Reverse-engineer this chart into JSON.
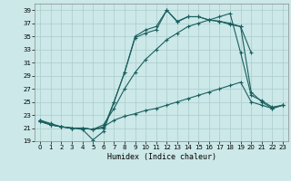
{
  "xlabel": "Humidex (Indice chaleur)",
  "bg_color": "#cce8e8",
  "grid_color": "#aacccc",
  "line_color": "#1a5f5f",
  "xlim": [
    -0.5,
    23.5
  ],
  "ylim": [
    19,
    40
  ],
  "yticks": [
    19,
    21,
    23,
    25,
    27,
    29,
    31,
    33,
    35,
    37,
    39
  ],
  "xticks": [
    0,
    1,
    2,
    3,
    4,
    5,
    6,
    7,
    8,
    9,
    10,
    11,
    12,
    13,
    14,
    15,
    16,
    17,
    18,
    19,
    20,
    21,
    22,
    23
  ],
  "series": [
    {
      "x": [
        0,
        1,
        2,
        3,
        4,
        5,
        6,
        7,
        8,
        9,
        10,
        11,
        12,
        13,
        14,
        15,
        16,
        17,
        18,
        19,
        20
      ],
      "y": [
        22.2,
        21.7,
        21.2,
        21.0,
        21.0,
        20.8,
        21.0,
        25.0,
        29.5,
        34.8,
        35.5,
        36.0,
        39.0,
        37.2,
        38.0,
        38.0,
        37.5,
        37.3,
        36.8,
        36.5,
        32.5
      ]
    },
    {
      "x": [
        0,
        1,
        2,
        3,
        4,
        5,
        6,
        7,
        8,
        9,
        10,
        11,
        12,
        13,
        14,
        15,
        16,
        17,
        18,
        19,
        20,
        21,
        22,
        23
      ],
      "y": [
        22.2,
        21.5,
        21.2,
        21.0,
        20.8,
        19.2,
        20.5,
        25.0,
        29.5,
        35.0,
        36.0,
        36.5,
        39.0,
        37.3,
        38.0,
        38.0,
        37.5,
        37.3,
        37.0,
        36.5,
        26.5,
        25.0,
        24.0,
        24.5
      ]
    },
    {
      "x": [
        0,
        1,
        2,
        3,
        4,
        5,
        6,
        7,
        8,
        9,
        10,
        11,
        12,
        13,
        14,
        15,
        16,
        17,
        18,
        19,
        20,
        21,
        22,
        23
      ],
      "y": [
        22.0,
        21.5,
        21.2,
        21.0,
        21.0,
        20.8,
        21.5,
        24.0,
        27.0,
        29.5,
        31.5,
        33.0,
        34.5,
        35.5,
        36.5,
        37.0,
        37.5,
        38.0,
        38.5,
        32.5,
        26.0,
        25.2,
        24.2,
        24.5
      ]
    },
    {
      "x": [
        0,
        1,
        2,
        3,
        4,
        5,
        6,
        7,
        8,
        9,
        10,
        11,
        12,
        13,
        14,
        15,
        16,
        17,
        18,
        19,
        20,
        21,
        22,
        23
      ],
      "y": [
        22.0,
        21.5,
        21.2,
        21.0,
        21.0,
        20.8,
        21.2,
        22.2,
        22.8,
        23.2,
        23.7,
        24.0,
        24.5,
        25.0,
        25.5,
        26.0,
        26.5,
        27.0,
        27.5,
        28.0,
        25.0,
        24.5,
        24.0,
        24.5
      ]
    }
  ]
}
